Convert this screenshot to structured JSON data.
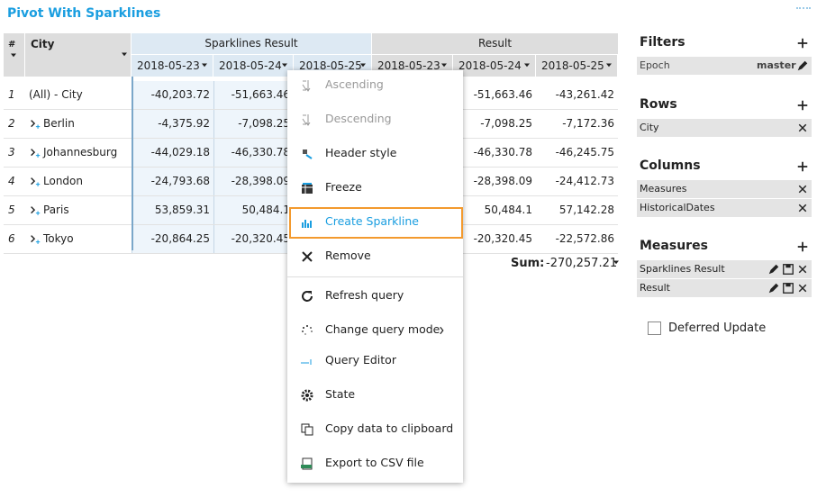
{
  "title": "Pivot With Sparklines",
  "table": {
    "columns": {
      "index": "#",
      "city": "City",
      "groups": [
        "Sparklines Result",
        "Result"
      ],
      "dates": [
        "2018-05-23",
        "2018-05-24",
        "2018-05-25",
        "2018-05-23",
        "2018-05-24",
        "2018-05-25"
      ]
    },
    "rows": [
      [
        "1",
        "(All) - City",
        "-40,203.72",
        "-51,663.46",
        "-51,663.46",
        "-43,261.42"
      ],
      [
        "2",
        "Berlin",
        "-4,375.92",
        "-7,098.25",
        "-7,098.25",
        "-7,172.36"
      ],
      [
        "3",
        "Johannesburg",
        "-44,029.18",
        "-46,330.78",
        "-46,330.78",
        "-46,245.75"
      ],
      [
        "4",
        "London",
        "-24,793.68",
        "-28,398.09",
        "-28,398.09",
        "-24,412.73"
      ],
      [
        "5",
        "Paris",
        "53,859.31",
        "50,484.1",
        "50,484.1",
        "57,142.28"
      ],
      [
        "6",
        "Tokyo",
        "-20,864.25",
        "-20,320.45",
        "-20,320.45",
        "-22,572.86"
      ]
    ]
  },
  "sum": {
    "label": "Sum:",
    "value": "-270,257.21"
  },
  "context_menu": {
    "items": [
      "Ascending",
      "Descending",
      "Header style",
      "Freeze",
      "Create Sparkline",
      "Remove",
      "Refresh query",
      "Change query mode",
      "Query Editor",
      "State",
      "Copy data to clipboard",
      "Export to CSV file"
    ]
  },
  "side_panel": {
    "filters": {
      "title": "Filters",
      "items": [
        {
          "label": "Epoch",
          "value": "master"
        }
      ]
    },
    "rows": {
      "title": "Rows",
      "items": [
        "City"
      ]
    },
    "columns": {
      "title": "Columns",
      "items": [
        "Measures",
        "HistoricalDates"
      ]
    },
    "measures": {
      "title": "Measures",
      "items": [
        "Sparklines Result",
        "Result"
      ]
    },
    "deferred_update": "Deferred Update"
  }
}
